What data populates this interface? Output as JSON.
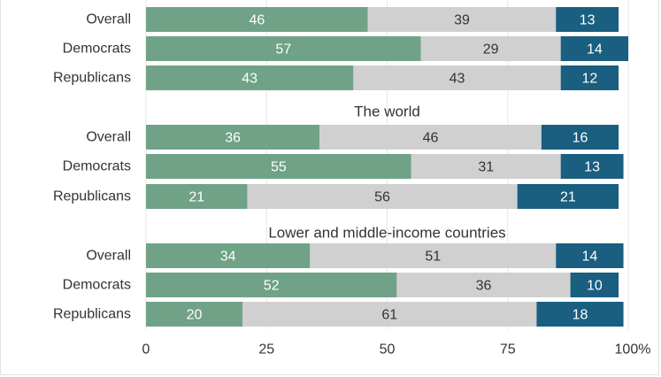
{
  "chart_data": {
    "type": "bar",
    "orientation": "horizontal",
    "stacked": true,
    "colors": [
      "#6fa287",
      "#d0d0d0",
      "#1a5e80"
    ],
    "value_label_colors": [
      "#ffffff",
      "#333333",
      "#ffffff"
    ],
    "xlim": [
      0,
      100
    ],
    "xticks": [
      "0",
      "25",
      "50",
      "75",
      "100%"
    ],
    "xtick_values": [
      0,
      25,
      50,
      75,
      100
    ],
    "grid": true,
    "groups": [
      {
        "title": "",
        "categories": [
          "Overall",
          "Democrats",
          "Republicans"
        ],
        "values": [
          [
            46,
            39,
            13
          ],
          [
            57,
            29,
            14
          ],
          [
            43,
            43,
            12
          ]
        ]
      },
      {
        "title": "The world",
        "categories": [
          "Overall",
          "Democrats",
          "Republicans"
        ],
        "values": [
          [
            36,
            46,
            16
          ],
          [
            55,
            31,
            13
          ],
          [
            21,
            56,
            21
          ]
        ]
      },
      {
        "title": "Lower and middle-income countries",
        "categories": [
          "Overall",
          "Democrats",
          "Republicans"
        ],
        "values": [
          [
            34,
            51,
            14
          ],
          [
            52,
            36,
            10
          ],
          [
            20,
            61,
            18
          ]
        ]
      }
    ]
  }
}
